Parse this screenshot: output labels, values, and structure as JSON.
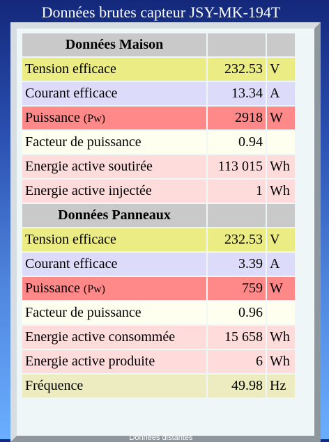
{
  "page": {
    "title": "Données brutes capteur JSY-MK-194T"
  },
  "maison": {
    "header": "Données Maison",
    "rows": [
      {
        "label": "Tension efficace",
        "value": "232.53",
        "unit": "V"
      },
      {
        "label": "Courant efficace",
        "value": "13.34",
        "unit": "A"
      },
      {
        "label": "Puissance",
        "label_suffix": "(Pw)",
        "value": "2918",
        "unit": "W"
      },
      {
        "label": "Facteur de puissance",
        "value": "0.94",
        "unit": ""
      },
      {
        "label": "Energie active soutirée",
        "value": "113 015",
        "unit": "Wh"
      },
      {
        "label": "Energie active injectée",
        "value": "1",
        "unit": "Wh"
      }
    ]
  },
  "panneaux": {
    "header": "Données Panneaux",
    "rows": [
      {
        "label": "Tension efficace",
        "value": "232.53",
        "unit": "V"
      },
      {
        "label": "Courant efficace",
        "value": "3.39",
        "unit": "A"
      },
      {
        "label": "Puissance",
        "label_suffix": "(Pw)",
        "value": "759",
        "unit": "W"
      },
      {
        "label": "Facteur de puissance",
        "value": "0.96",
        "unit": ""
      },
      {
        "label": "Energie active consommée",
        "value": "15 658",
        "unit": "Wh"
      },
      {
        "label": "Energie active produite",
        "value": "6",
        "unit": "Wh"
      },
      {
        "label": "Fréquence",
        "value": "49.98",
        "unit": "Hz"
      }
    ]
  },
  "footer": {
    "link_label": "Données distantes"
  },
  "colors": {
    "tension": "#ecec85",
    "courant": "#dcdcfa",
    "puissance": "#ff8888",
    "facteur": "#fffff0",
    "energie": "#ffdcdc",
    "frequence": "#ececc0",
    "header": "#c9c9c9"
  }
}
